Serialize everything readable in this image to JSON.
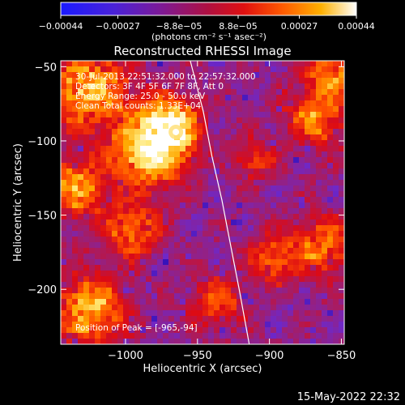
{
  "chart_data": {
    "type": "heatmap",
    "title": "Reconstructed RHESSI Image",
    "xlabel": "Heliocentric X (arcsec)",
    "ylabel": "Heliocentric Y (arcsec)",
    "xlim": [
      -1045,
      -848
    ],
    "ylim": [
      -237,
      -46
    ],
    "x_ticks": [
      -1000,
      -950,
      -900,
      -850
    ],
    "x_tick_labels": [
      "−1000",
      "−950",
      "−900",
      "−850"
    ],
    "y_ticks": [
      -200,
      -150,
      -100,
      -50
    ],
    "y_tick_labels": [
      "−200",
      "−150",
      "−100",
      "−50"
    ],
    "colorbar": {
      "range": [
        -0.00044,
        0.00044
      ],
      "tick_values": [
        -0.00044,
        -0.00027,
        -8.8e-05,
        8.8e-05,
        0.00027,
        0.00044
      ],
      "tick_labels": [
        "−0.00044",
        "−0.00027",
        "−8.8e−05",
        "8.8e−05",
        "0.00027",
        "0.00044"
      ],
      "units": "(photons cm⁻² s⁻¹ asec⁻²)"
    },
    "annotations": [
      "30-Jul-2013 22:51:32.000 to 22:57:32.000",
      "Detectors: 3F 4F 5F 6F 7F 8F, Att 0",
      "Energy Range: 25.0 - 50.0 keV",
      "Clean   Total counts: 1.33E+04"
    ],
    "peak_label": "Position of Peak = [-965,-94]",
    "peak_position": [
      -965,
      -94
    ],
    "limb_curve": {
      "x": [
        -955,
        -946,
        -940,
        -933,
        -927,
        -921,
        -914
      ],
      "y": [
        -46,
        -80,
        -110,
        -140,
        -170,
        -200,
        -237
      ]
    },
    "timestamp": "15-May-2022 22:32",
    "colors": {
      "background": "#000000",
      "colormap": [
        "#1e0ab4",
        "#6e28c8",
        "#a01e6e",
        "#dc0a14",
        "#ff5000",
        "#ffa800",
        "#ffe878",
        "#ffffff"
      ]
    }
  }
}
